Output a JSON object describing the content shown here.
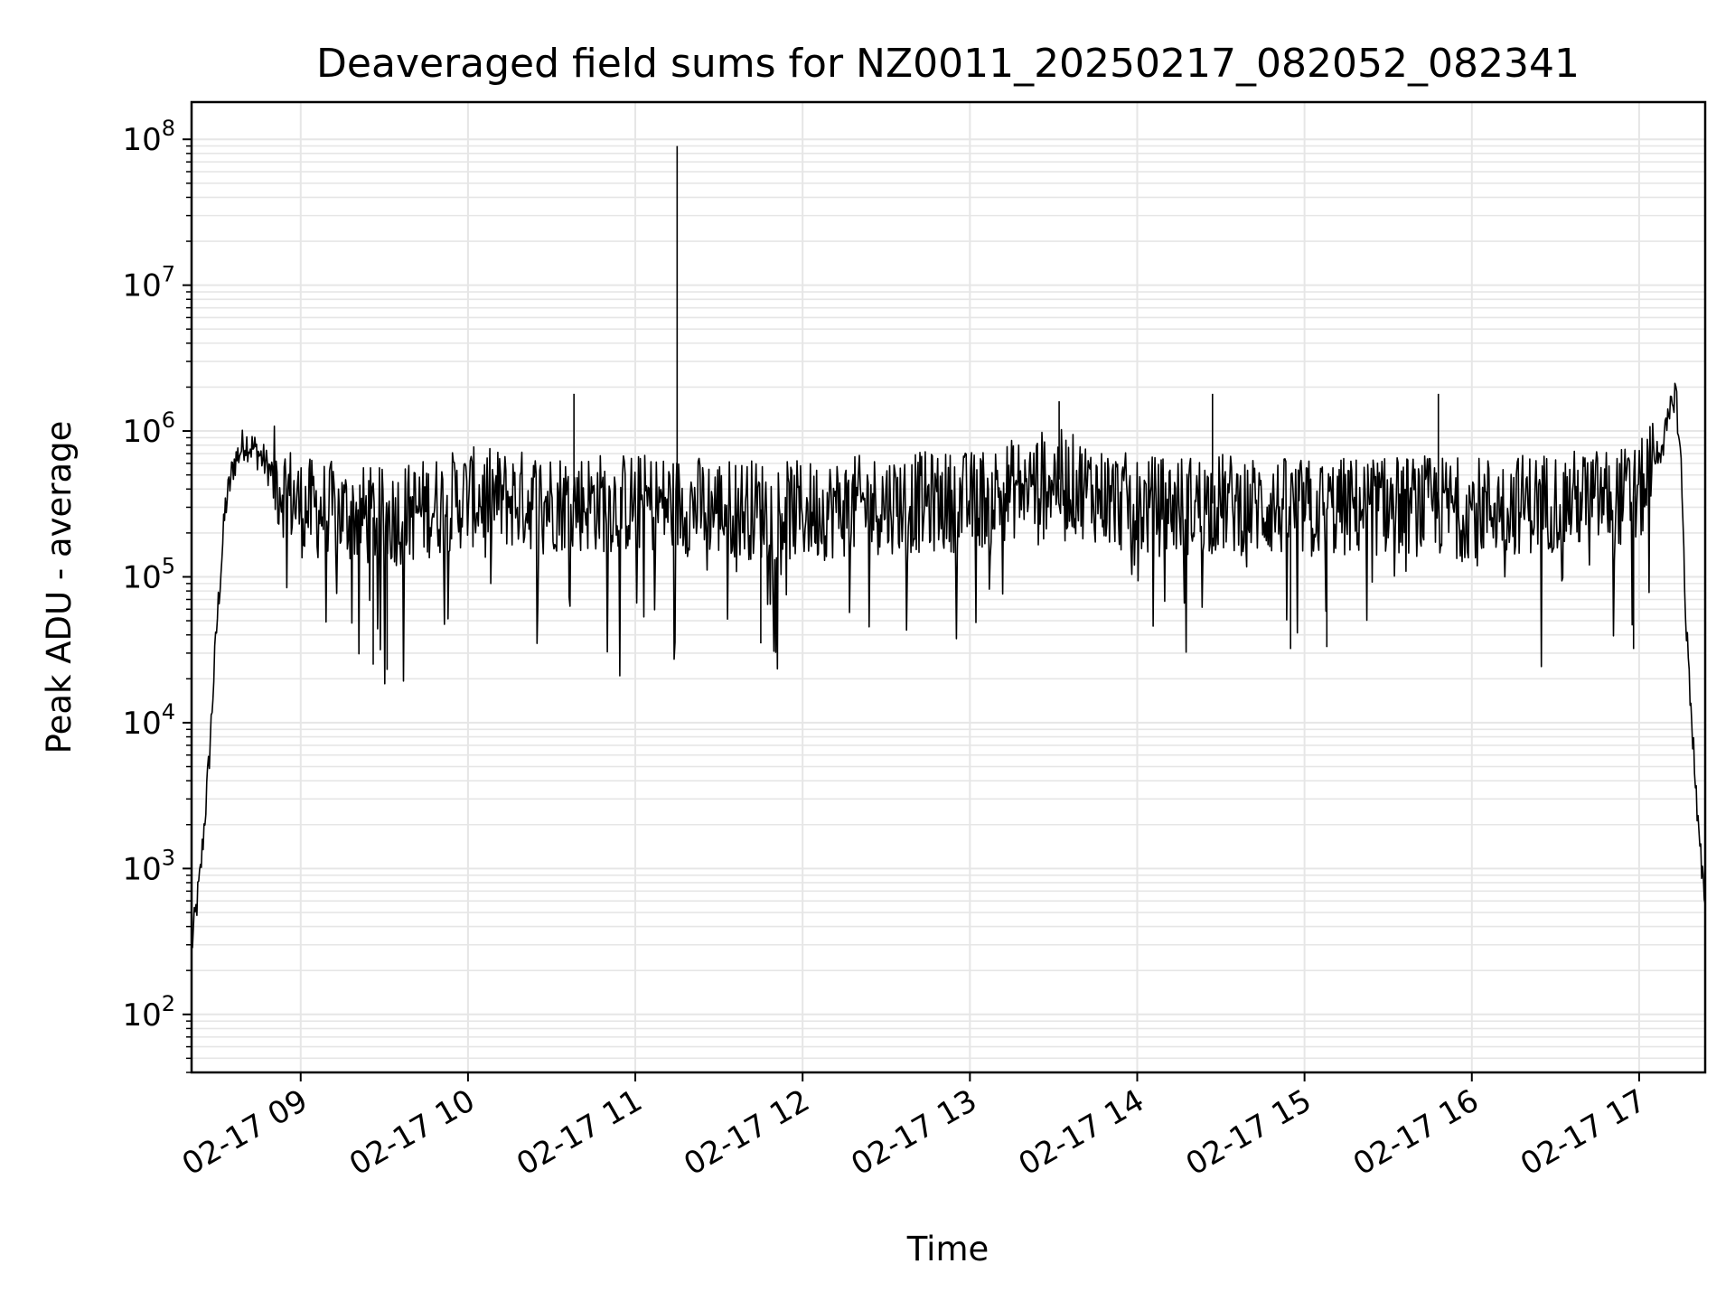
{
  "chart_data": {
    "type": "line",
    "title": "Deaveraged field sums for NZ0011_20250217_082052_082341",
    "xlabel": "Time",
    "ylabel": "Peak ADU - average",
    "yscale": "log",
    "ylim": [
      40,
      180000000
    ],
    "xlim": [
      "2025-02-17 08:20:52",
      "2025-02-17 17:23:41"
    ],
    "grid": true,
    "line_color": "#000000",
    "grid_color": "#e6e6e6",
    "x_tick_labels": [
      "02-17 09",
      "02-17 10",
      "02-17 11",
      "02-17 12",
      "02-17 13",
      "02-17 14",
      "02-17 15",
      "02-17 16",
      "02-17 17"
    ],
    "y_tick_labels": [
      {
        "base": "10",
        "exp": "2"
      },
      {
        "base": "10",
        "exp": "3"
      },
      {
        "base": "10",
        "exp": "4"
      },
      {
        "base": "10",
        "exp": "5"
      },
      {
        "base": "10",
        "exp": "6"
      },
      {
        "base": "10",
        "exp": "7"
      },
      {
        "base": "10",
        "exp": "8"
      }
    ],
    "series": [
      {
        "x": [
          "2025-02-17 08:21",
          "2025-02-17 08:24",
          "2025-02-17 08:27",
          "2025-02-17 08:30",
          "2025-02-17 08:33",
          "2025-02-17 08:36",
          "2025-02-17 08:40",
          "2025-02-17 08:45",
          "2025-02-17 08:50",
          "2025-02-17 09:00",
          "2025-02-17 09:30",
          "2025-02-17 10:00",
          "2025-02-17 10:30",
          "2025-02-17 11:00",
          "2025-02-17 11:30",
          "2025-02-17 12:00",
          "2025-02-17 12:30",
          "2025-02-17 13:00",
          "2025-02-17 13:30",
          "2025-02-17 14:00",
          "2025-02-17 14:30",
          "2025-02-17 15:00",
          "2025-02-17 15:30",
          "2025-02-17 16:00",
          "2025-02-17 16:30",
          "2025-02-17 17:00",
          "2025-02-17 17:10",
          "2025-02-17 17:13",
          "2025-02-17 17:15",
          "2025-02-17 17:17",
          "2025-02-17 17:19",
          "2025-02-17 17:21",
          "2025-02-17 17:23"
        ],
        "y": [
          300,
          900,
          5000,
          50000,
          300000,
          600000,
          850000,
          700000,
          500000,
          300000,
          250000,
          350000,
          330000,
          320000,
          300000,
          280000,
          320000,
          330000,
          480000,
          300000,
          320000,
          290000,
          310000,
          300000,
          330000,
          360000,
          1000000,
          2000000,
          600000,
          40000,
          10000,
          2000,
          700
        ]
      }
    ],
    "noise": {
      "amplitude_decades": 0.35,
      "dip_to": 30000
    },
    "spikes": [
      {
        "x": "2025-02-17 11:15",
        "y": 90000000
      },
      {
        "x": "2025-02-17 10:38",
        "y": 1800000
      },
      {
        "x": "2025-02-17 11:45",
        "y": 35000
      },
      {
        "x": "2025-02-17 13:32",
        "y": 1600000
      },
      {
        "x": "2025-02-17 14:27",
        "y": 1800000
      },
      {
        "x": "2025-02-17 14:55",
        "y": 32000
      },
      {
        "x": "2025-02-17 15:08",
        "y": 33000
      },
      {
        "x": "2025-02-17 15:48",
        "y": 1800000
      },
      {
        "x": "2025-02-17 09:26",
        "y": 25000
      },
      {
        "x": "2025-02-17 09:31",
        "y": 23000
      },
      {
        "x": "2025-02-17 16:58",
        "y": 32000
      }
    ]
  }
}
